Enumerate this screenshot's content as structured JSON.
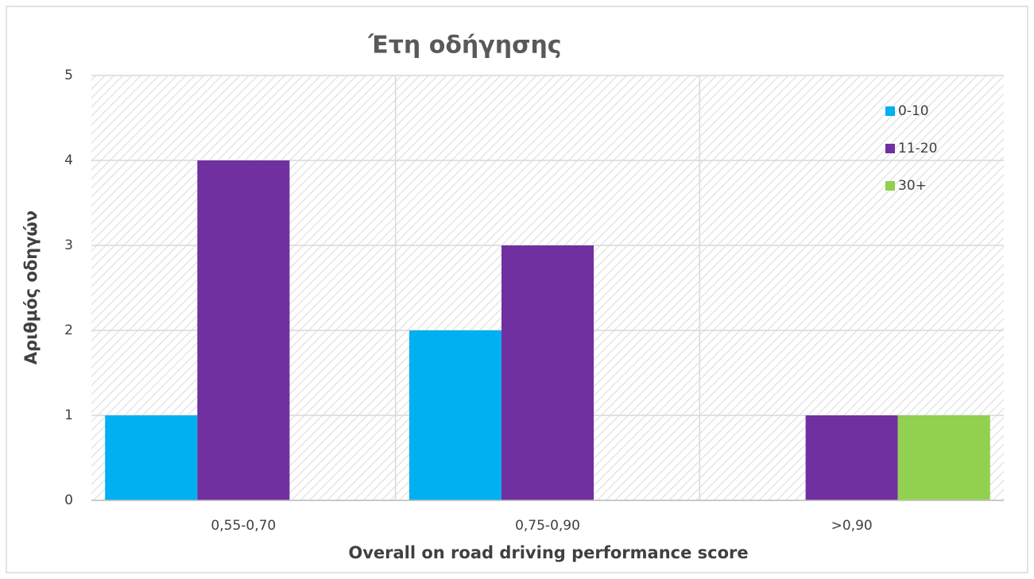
{
  "chart_data": {
    "type": "bar",
    "title": "Έτη οδήγησης",
    "x_label": "Overall on road driving performance score",
    "y_label": "Αριθμός οδηγών",
    "categories": [
      "0,55-0,70",
      "0,75-0,90",
      ">0,90"
    ],
    "series": [
      {
        "name": "0-10",
        "color": "#00b0f0",
        "values": [
          1,
          2,
          0
        ]
      },
      {
        "name": "11-20",
        "color": "#7030a0",
        "values": [
          4,
          3,
          1
        ]
      },
      {
        "name": "30+",
        "color": "#92d050",
        "values": [
          0,
          0,
          1
        ]
      }
    ],
    "ylim": [
      0,
      5
    ],
    "yticks": [
      0,
      1,
      2,
      3,
      4,
      5
    ],
    "grid": true,
    "legend": "upper right"
  }
}
